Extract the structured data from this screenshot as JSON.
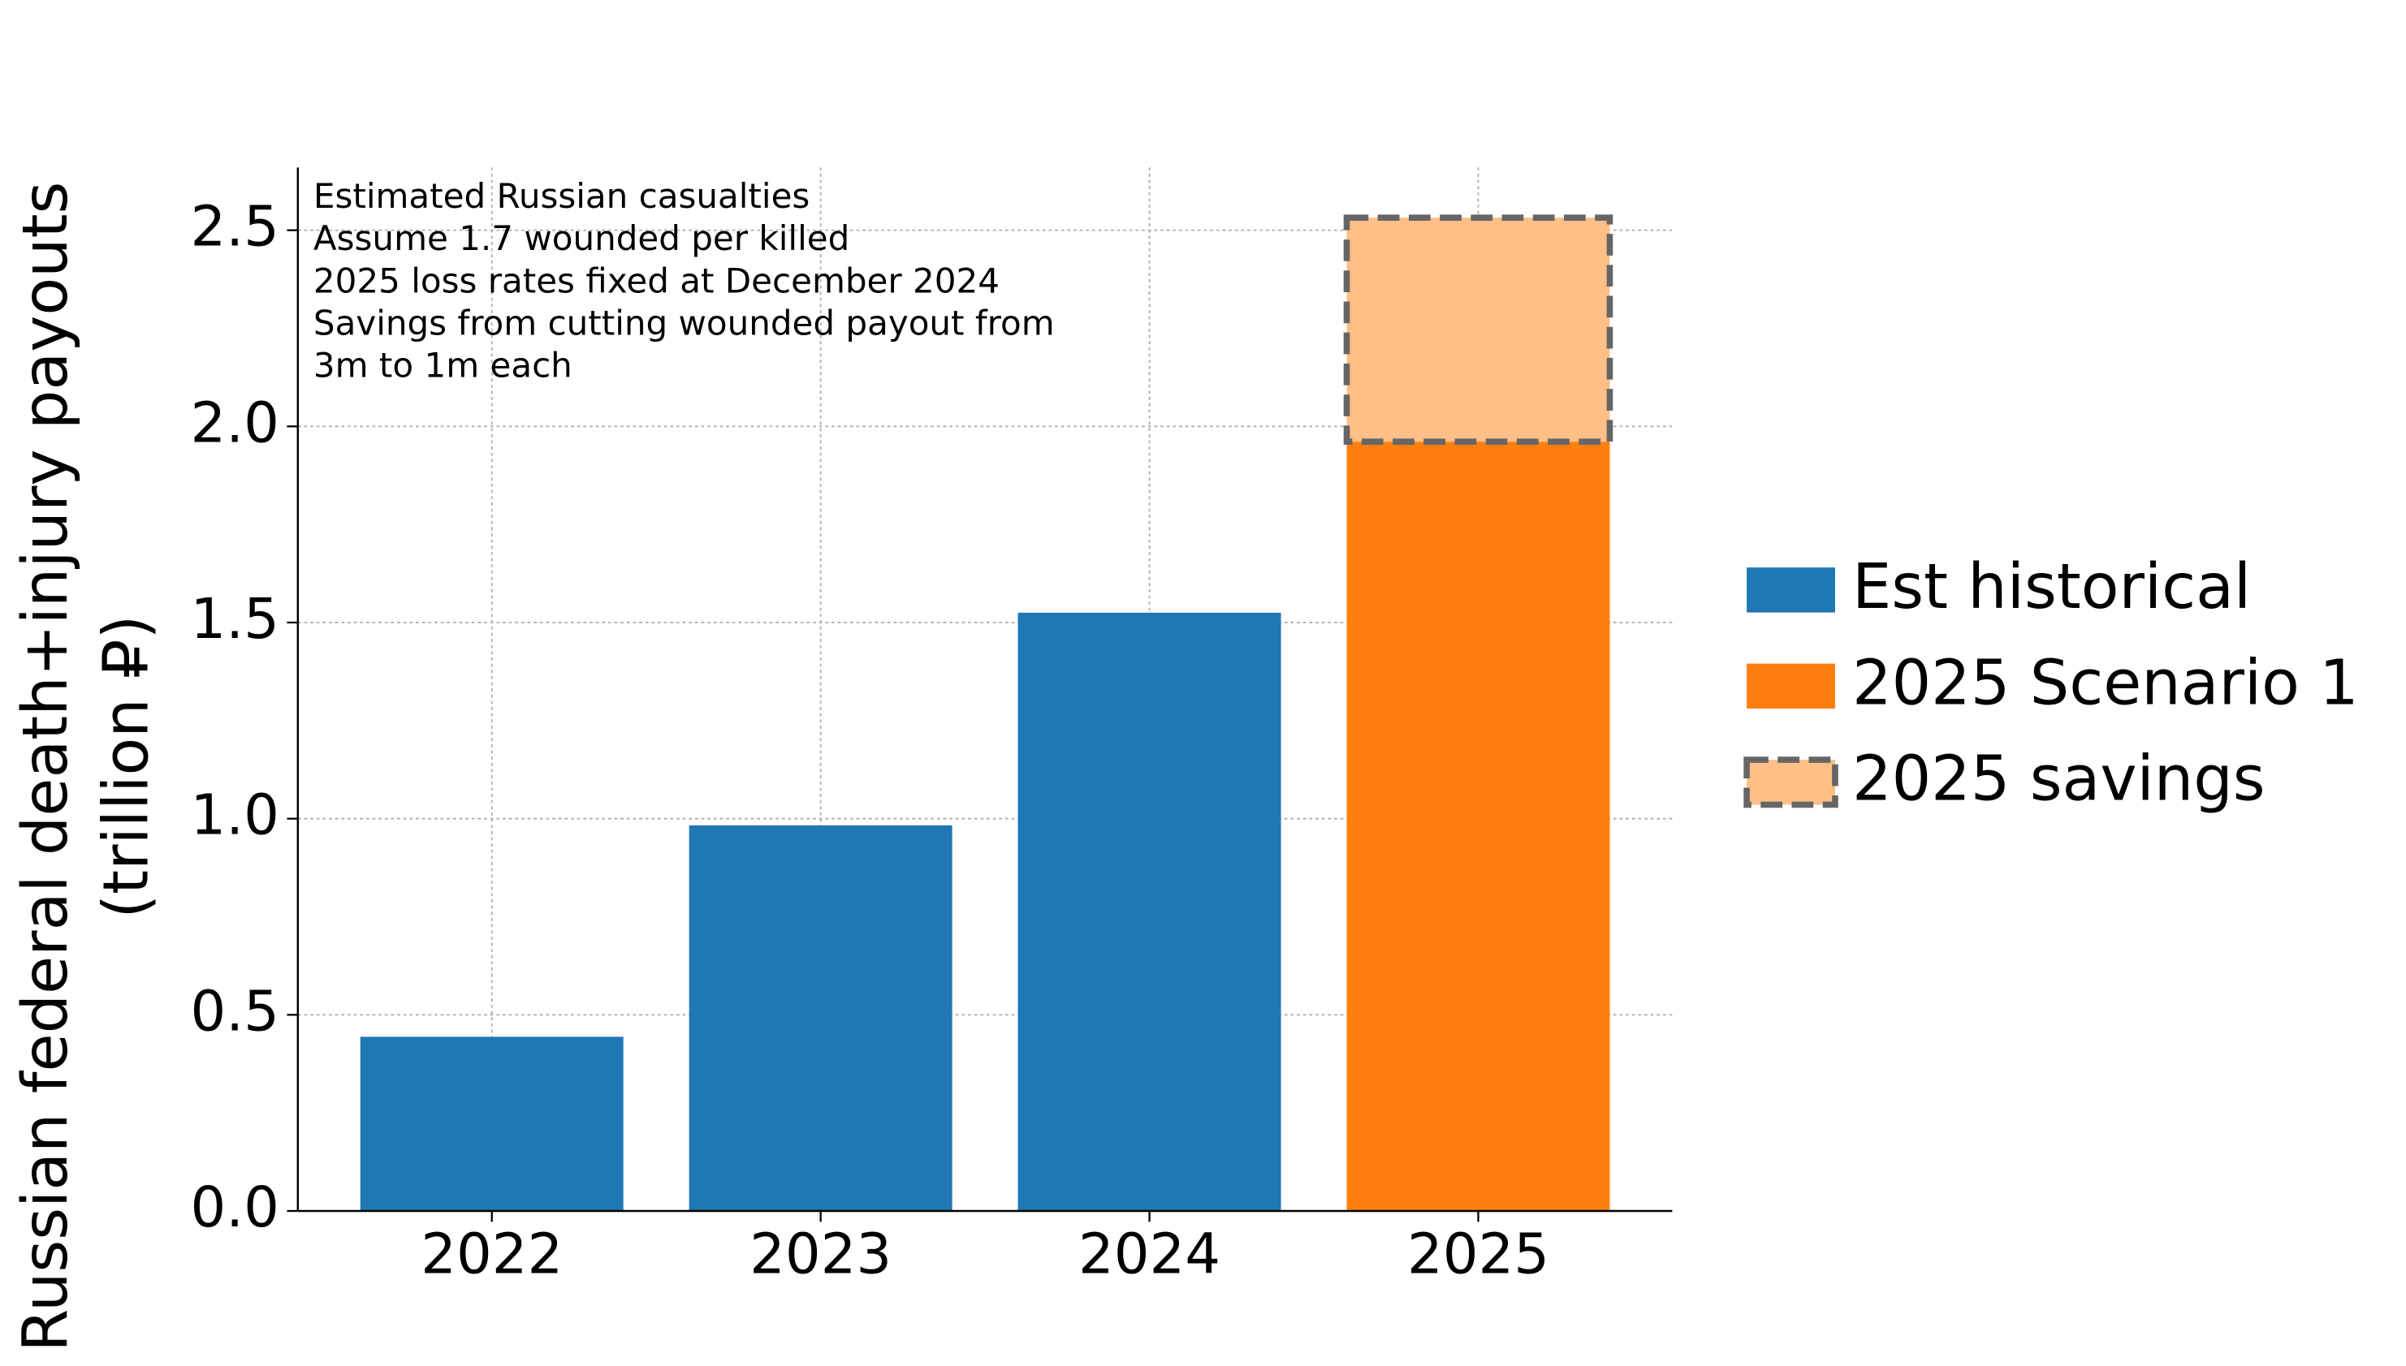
{
  "chart_data": {
    "type": "bar",
    "stacked": true,
    "annotation": [
      "Estimated Russian casualties",
      "Assume 1.7 wounded per killed",
      "2025 loss rates fixed at December 2024",
      "Savings from cutting wounded payout from",
      "3m to 1m each"
    ],
    "ylabel": [
      "Russian federal death+injury payouts",
      "(trillion ₽)"
    ],
    "categories": [
      "2022",
      "2023",
      "2024",
      "2025"
    ],
    "series": [
      {
        "name": "Est historical",
        "color": "#1f77b4",
        "values": [
          0.444,
          0.983,
          1.525,
          null
        ]
      },
      {
        "name": "2025 Scenario 1",
        "color": "#ff7f0e",
        "values": [
          null,
          null,
          null,
          1.961
        ]
      },
      {
        "name": "2025 savings",
        "color": "#ffbf86",
        "edgecolor": "#666666",
        "linestyle": "dashed",
        "values": [
          null,
          null,
          null,
          0.571
        ]
      }
    ],
    "ylim": [
      0,
      2.66
    ],
    "yticks": [
      {
        "value": 0,
        "label": "0.0"
      },
      0.5,
      {
        "value": 1,
        "label": "1.0"
      },
      1.5,
      {
        "value": 2,
        "label": "2.0"
      },
      2.5
    ],
    "grid": true,
    "legend": "right"
  }
}
